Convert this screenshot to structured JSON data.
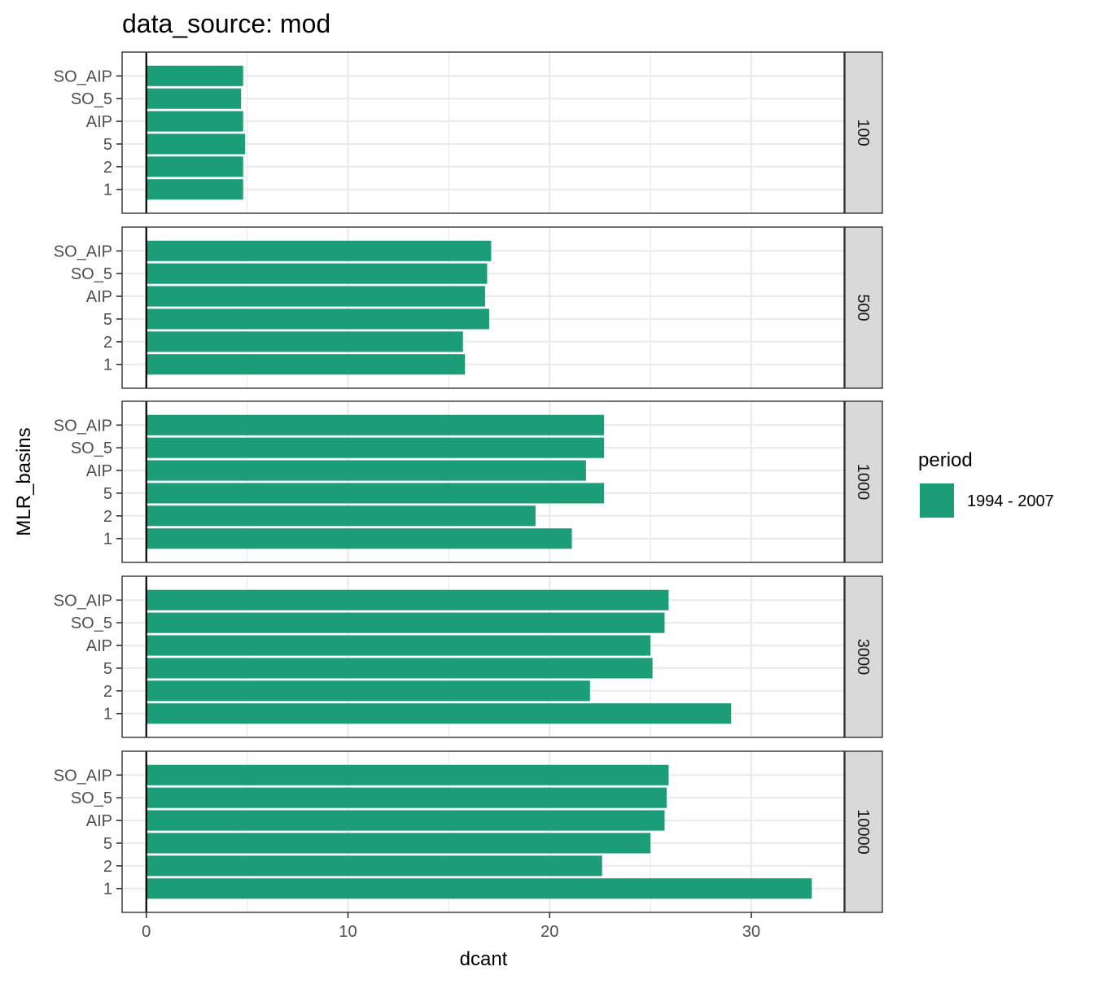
{
  "chart_data": {
    "type": "bar",
    "orientation": "horizontal",
    "title": "data_source: mod",
    "xlabel": "dcant",
    "ylabel": "MLR_basins",
    "xlim": [
      -1.2,
      34.6
    ],
    "x_ticks": [
      0,
      10,
      20,
      30
    ],
    "categories": [
      "1",
      "2",
      "5",
      "AIP",
      "SO_5",
      "SO_AIP"
    ],
    "legend": {
      "title": "period",
      "placement": "right",
      "entries": [
        {
          "label": "1994 - 2007",
          "color": "#1b9e77"
        }
      ]
    },
    "facet_variable": "depth",
    "facets": [
      {
        "label": "100",
        "values": [
          4.8,
          4.8,
          4.9,
          4.8,
          4.7,
          4.8
        ]
      },
      {
        "label": "500",
        "values": [
          15.8,
          15.7,
          17.0,
          16.8,
          16.9,
          17.1
        ]
      },
      {
        "label": "1000",
        "values": [
          21.1,
          19.3,
          22.7,
          21.8,
          22.7,
          22.7
        ]
      },
      {
        "label": "3000",
        "values": [
          29.0,
          22.0,
          25.1,
          25.0,
          25.7,
          25.9
        ]
      },
      {
        "label": "10000",
        "values": [
          33.0,
          22.6,
          25.0,
          25.7,
          25.8,
          25.9
        ]
      }
    ],
    "grid": true,
    "colors": {
      "bar": "#1b9e77",
      "strip_bg": "#d9d9d9",
      "grid": "#ebebeb"
    }
  }
}
